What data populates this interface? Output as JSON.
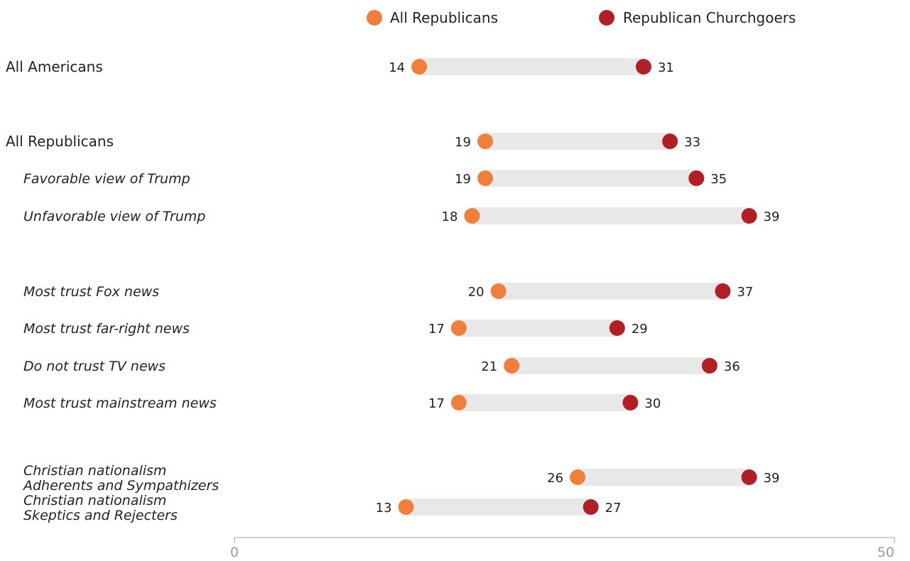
{
  "chart_data": {
    "type": "dumbbell",
    "xlim": [
      0,
      50
    ],
    "x_ticks": [
      "0",
      "50"
    ],
    "grid": false,
    "legend_position": "top",
    "series": [
      {
        "name": "All Republicans",
        "color": "#f07f3c"
      },
      {
        "name": "Republican Churchgoers",
        "color": "#b01f24"
      }
    ],
    "rows": [
      {
        "label": [
          "All Americans"
        ],
        "style": "main",
        "all_republicans": 14,
        "republican_churchgoers": 31
      },
      {
        "label": [
          "All Republicans"
        ],
        "style": "main",
        "all_republicans": 19,
        "republican_churchgoers": 33
      },
      {
        "label": [
          "Favorable view of Trump"
        ],
        "style": "sub",
        "all_republicans": 19,
        "republican_churchgoers": 35
      },
      {
        "label": [
          "Unfavorable view of Trump"
        ],
        "style": "sub",
        "all_republicans": 18,
        "republican_churchgoers": 39
      },
      {
        "label": [
          "Most trust Fox news"
        ],
        "style": "sub",
        "all_republicans": 20,
        "republican_churchgoers": 37
      },
      {
        "label": [
          "Most trust far-right news"
        ],
        "style": "sub",
        "all_republicans": 17,
        "republican_churchgoers": 29
      },
      {
        "label": [
          "Do not trust TV news"
        ],
        "style": "sub",
        "all_republicans": 21,
        "republican_churchgoers": 36
      },
      {
        "label": [
          "Most trust mainstream news"
        ],
        "style": "sub",
        "all_republicans": 17,
        "republican_churchgoers": 30
      },
      {
        "label": [
          "Christian nationalism",
          "Adherents and Sympathizers"
        ],
        "style": "sub",
        "all_republicans": 26,
        "republican_churchgoers": 39
      },
      {
        "label": [
          "Christian nationalism",
          "Skeptics and Rejecters"
        ],
        "style": "sub",
        "all_republicans": 13,
        "republican_churchgoers": 27
      }
    ]
  }
}
